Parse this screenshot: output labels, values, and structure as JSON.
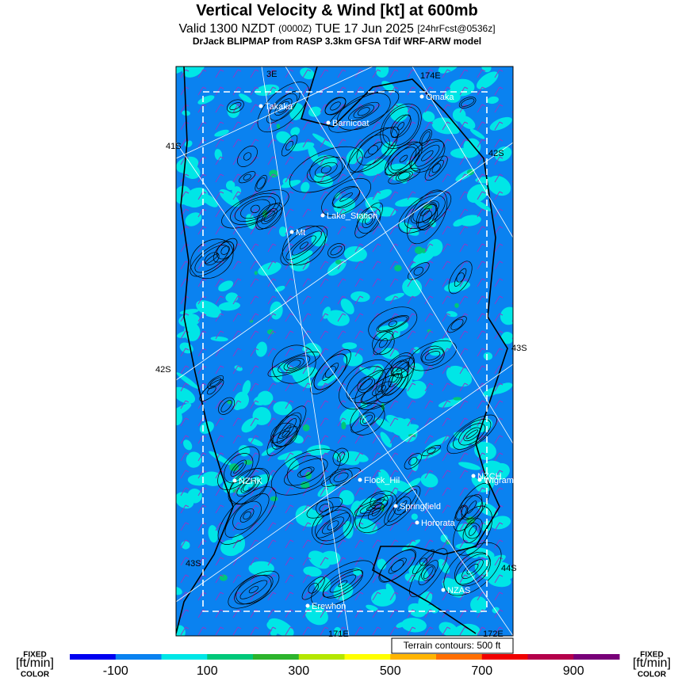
{
  "header": {
    "title": "Vertical Velocity & Wind [kt] at 600mb",
    "valid": "Valid 1300 NZDT",
    "utc": "(0000Z)",
    "date": "TUE 17 Jun 2025",
    "forecast": "[24hrFcst@0536z]",
    "model": "DrJack BLIPMAP from RASP 3.3km GFSA Tdif WRF-ARW model"
  },
  "places": [
    "Takaka",
    "Barnicoat",
    "Omaka",
    "Lake_Station",
    "Mt",
    "NZHK",
    "Flock_Hil",
    "NZCH",
    "Wigram",
    "Springfield",
    "Hororata",
    "NZAS",
    "Erewhon"
  ],
  "grid_labels": [
    "3E",
    "174E",
    "41S",
    "42S",
    "42S",
    "43S",
    "43S",
    "44S",
    "171E",
    "172E"
  ],
  "terrain_note": "Terrain contours: 500 ft",
  "colorbar": {
    "side_label": [
      "FIXED",
      "[ft/min]",
      "COLOR"
    ],
    "range": [
      -200,
      1000
    ],
    "ticks": [
      -100,
      100,
      300,
      500,
      700,
      900
    ],
    "colors": [
      "#0000f0",
      "#0a82f0",
      "#00e6e6",
      "#00c87a",
      "#2db42d",
      "#b4e600",
      "#ffff00",
      "#ffb400",
      "#ff6e00",
      "#f00000",
      "#b4004b",
      "#780078"
    ]
  }
}
